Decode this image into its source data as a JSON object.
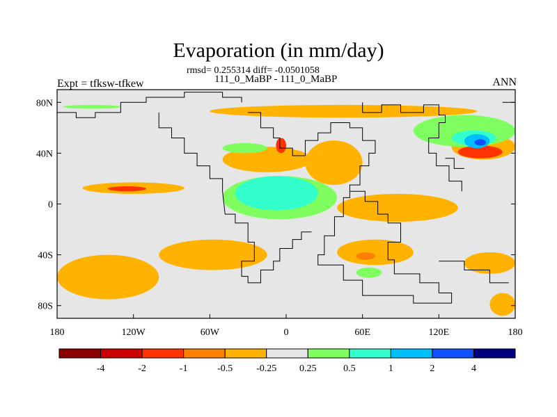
{
  "header": {
    "title": "Evaporation (in mm/day)",
    "stats": "rmsd= 0.255314 diff= -0.0501058",
    "subtitle": "111_0_MaBP - 111_0_MaBP",
    "left_label": "Expt = tfksw-tfkew",
    "right_label": "ANN"
  },
  "chart_data": {
    "type": "heatmap",
    "title": "Evaporation (in mm/day)",
    "xlabel": "",
    "ylabel": "",
    "xlim": [
      -180,
      180
    ],
    "ylim": [
      -90,
      90
    ],
    "x_ticks": [
      {
        "value": -180,
        "label": "180"
      },
      {
        "value": -120,
        "label": "120W"
      },
      {
        "value": -60,
        "label": "60W"
      },
      {
        "value": 0,
        "label": "0"
      },
      {
        "value": 60,
        "label": "60E"
      },
      {
        "value": 120,
        "label": "120E"
      },
      {
        "value": 180,
        "label": "180"
      }
    ],
    "y_ticks": [
      {
        "value": 80,
        "label": "80N"
      },
      {
        "value": 40,
        "label": "40N"
      },
      {
        "value": 0,
        "label": "0"
      },
      {
        "value": -40,
        "label": "40S"
      },
      {
        "value": -80,
        "label": "80S"
      }
    ],
    "colorbar": {
      "levels": [
        "-4",
        "-2",
        "-1",
        "-0.5",
        "-0.25",
        "0.25",
        "0.5",
        "1",
        "2",
        "4"
      ],
      "colors": [
        "#8b0000",
        "#cc0000",
        "#ff3300",
        "#ff7f00",
        "#ffb300",
        "#e6e6e6",
        "#7fff5f",
        "#33ffcc",
        "#00bfff",
        "#1050ff",
        "#000080"
      ]
    },
    "background_color": "#e6e6e6",
    "regions": [
      {
        "level": "-0.5..-0.25",
        "lon": [
          -100,
          -15
        ],
        "lat": [
          -28,
          -52
        ]
      },
      {
        "level": "-0.5..-0.25",
        "lon": [
          -180,
          -100
        ],
        "lat": [
          -40,
          -75
        ]
      },
      {
        "level": "-0.5..-0.25",
        "lon": [
          -160,
          -80
        ],
        "lat": [
          8,
          17
        ]
      },
      {
        "level": "-2..-1",
        "lon": [
          -140,
          -110
        ],
        "lat": [
          10,
          14
        ]
      },
      {
        "level": "-0.5..-0.25",
        "lon": [
          40,
          135
        ],
        "lat": [
          -14,
          8
        ]
      },
      {
        "level": "-0.5..-0.25",
        "lon": [
          15,
          60
        ],
        "lat": [
          15,
          50
        ]
      },
      {
        "level": "-0.5..-0.25",
        "lon": [
          -50,
          20
        ],
        "lat": [
          25,
          45
        ]
      },
      {
        "level": "-2..-1",
        "lon": [
          -8,
          0
        ],
        "lat": [
          40,
          52
        ]
      },
      {
        "level": "-0.5..-0.25",
        "lon": [
          -60,
          150
        ],
        "lat": [
          68,
          78
        ]
      },
      {
        "level": "-0.5..-0.25",
        "lon": [
          130,
          180
        ],
        "lat": [
          35,
          55
        ]
      },
      {
        "level": "-2..-1",
        "lon": [
          135,
          170
        ],
        "lat": [
          36,
          46
        ]
      },
      {
        "level": "-0.5..-0.25",
        "lon": [
          140,
          180
        ],
        "lat": [
          -38,
          -55
        ]
      },
      {
        "level": "-0.5..-0.25",
        "lon": [
          160,
          180
        ],
        "lat": [
          -70,
          -88
        ]
      },
      {
        "level": "-0.5..-0.25",
        "lon": [
          40,
          100
        ],
        "lat": [
          -28,
          -48
        ]
      },
      {
        "level": "-1..-0.5",
        "lon": [
          55,
          70
        ],
        "lat": [
          -38,
          -44
        ]
      },
      {
        "level": "0.25..0.5",
        "lon": [
          -50,
          40
        ],
        "lat": [
          -12,
          22
        ]
      },
      {
        "level": "0.5..1",
        "lon": [
          -40,
          25
        ],
        "lat": [
          -5,
          22
        ]
      },
      {
        "level": "0.25..0.5",
        "lon": [
          -50,
          -15
        ],
        "lat": [
          40,
          48
        ]
      },
      {
        "level": "0.25..0.5",
        "lon": [
          100,
          180
        ],
        "lat": [
          45,
          70
        ]
      },
      {
        "level": "0.5..1",
        "lon": [
          130,
          165
        ],
        "lat": [
          46,
          58
        ]
      },
      {
        "level": "1..2",
        "lon": [
          140,
          160
        ],
        "lat": [
          44,
          55
        ]
      },
      {
        "level": "2..4",
        "lon": [
          148,
          157
        ],
        "lat": [
          46,
          51
        ]
      },
      {
        "level": "0.25..0.5",
        "lon": [
          -175,
          -130
        ],
        "lat": [
          75,
          78
        ]
      },
      {
        "level": "0.25..0.5",
        "lon": [
          55,
          75
        ],
        "lat": [
          -50,
          -58
        ]
      }
    ]
  }
}
